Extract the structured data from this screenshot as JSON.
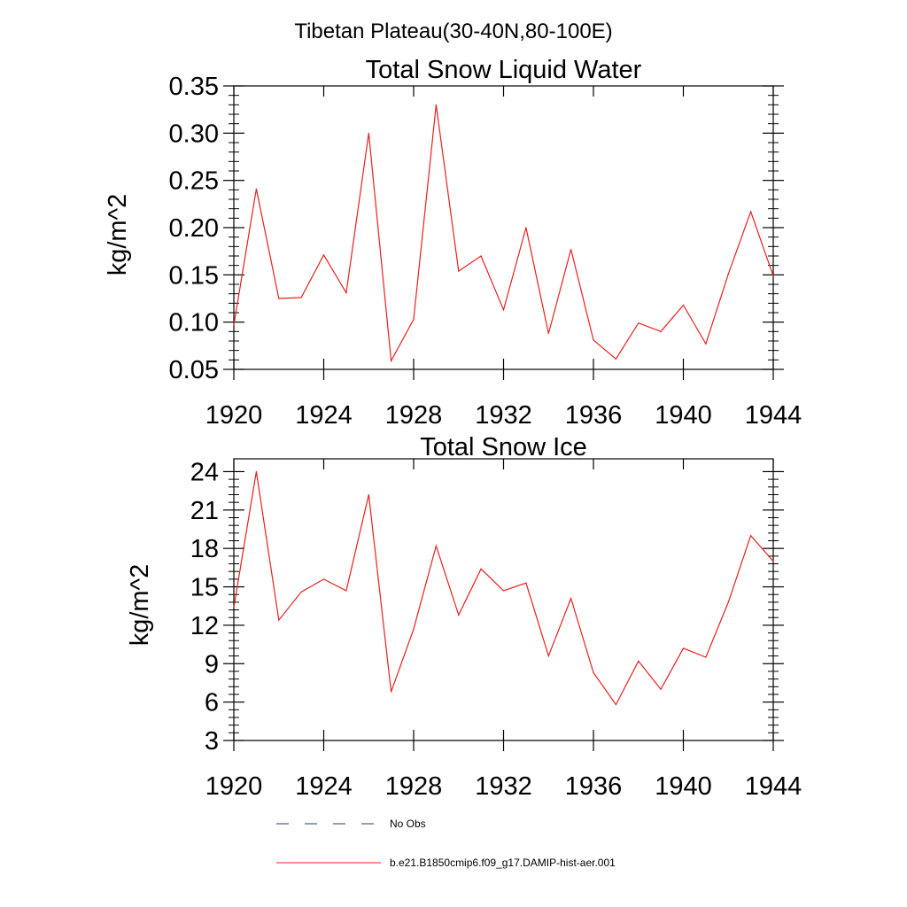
{
  "header": "Tibetan Plateau(30-40N,80-100E)",
  "legend": {
    "items": [
      {
        "label": "No Obs",
        "color": "#2b3b6b",
        "dash": "14,18"
      },
      {
        "label": "b.e21.B1850cmip6.f09_g17.DAMIP-hist-aer.001",
        "color": "#e8201d",
        "dash": ""
      }
    ]
  },
  "chart_data": [
    {
      "type": "line",
      "title": "Total Snow Liquid Water",
      "ylabel": "kg/m^2",
      "xlim": [
        1920,
        1944
      ],
      "ylim": [
        0.05,
        0.35
      ],
      "xticks": [
        1920,
        1924,
        1928,
        1932,
        1936,
        1940,
        1944
      ],
      "xtick_labels": [
        "1920",
        "1924",
        "1928",
        "1932",
        "1936",
        "1940",
        "1944"
      ],
      "yticks": [
        0.05,
        0.1,
        0.15,
        0.2,
        0.25,
        0.3,
        0.35
      ],
      "ytick_labels": [
        "0.05",
        "0.10",
        "0.15",
        "0.20",
        "0.25",
        "0.30",
        "0.35"
      ],
      "series": [
        {
          "color": "#e8201d",
          "x": [
            1920,
            1921,
            1922,
            1923,
            1924,
            1925,
            1926,
            1927,
            1928,
            1929,
            1930,
            1931,
            1932,
            1933,
            1934,
            1935,
            1936,
            1937,
            1938,
            1939,
            1940,
            1941,
            1942,
            1943,
            1944
          ],
          "y": [
            0.097,
            0.241,
            0.125,
            0.126,
            0.171,
            0.131,
            0.3,
            0.059,
            0.103,
            0.33,
            0.154,
            0.17,
            0.113,
            0.2,
            0.088,
            0.177,
            0.081,
            0.061,
            0.099,
            0.09,
            0.118,
            0.077,
            0.151,
            0.217,
            0.149
          ]
        }
      ]
    },
    {
      "type": "line",
      "title": "Total Snow Ice",
      "ylabel": "kg/m^2",
      "xlim": [
        1920,
        1944
      ],
      "ylim": [
        3,
        25
      ],
      "xticks": [
        1920,
        1924,
        1928,
        1932,
        1936,
        1940,
        1944
      ],
      "xtick_labels": [
        "1920",
        "1924",
        "1928",
        "1932",
        "1936",
        "1940",
        "1944"
      ],
      "yticks": [
        3,
        6,
        9,
        12,
        15,
        18,
        21,
        24
      ],
      "ytick_labels": [
        "3",
        "6",
        "9",
        "12",
        "15",
        "18",
        "21",
        "24"
      ],
      "series": [
        {
          "color": "#e8201d",
          "x": [
            1920,
            1921,
            1922,
            1923,
            1924,
            1925,
            1926,
            1927,
            1928,
            1929,
            1930,
            1931,
            1932,
            1933,
            1934,
            1935,
            1936,
            1937,
            1938,
            1939,
            1940,
            1941,
            1942,
            1943,
            1944
          ],
          "y": [
            13.4,
            24.0,
            12.4,
            14.6,
            15.6,
            14.7,
            22.2,
            6.8,
            11.7,
            18.2,
            12.8,
            16.4,
            14.7,
            15.3,
            9.6,
            14.1,
            8.3,
            5.8,
            9.2,
            7.0,
            10.2,
            9.5,
            13.8,
            19.0,
            17.0
          ]
        }
      ]
    }
  ]
}
